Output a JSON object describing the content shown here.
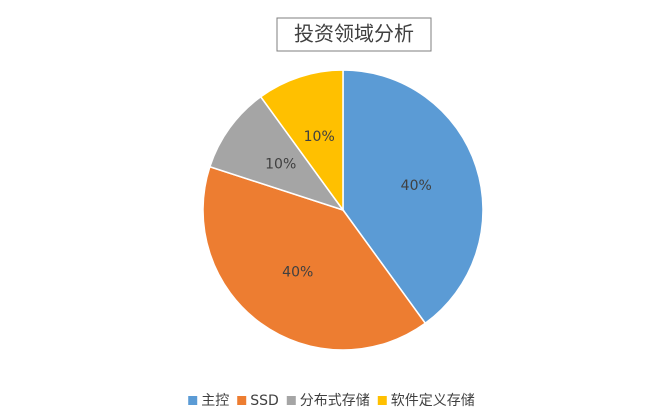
{
  "chart_data": {
    "type": "pie",
    "title": "投资领域分析",
    "categories": [
      "主控",
      "SSD",
      "分布式存储",
      "软件定义存储"
    ],
    "values": [
      40,
      40,
      10,
      10
    ],
    "value_labels": [
      "40%",
      "40%",
      "10%",
      "10%"
    ],
    "colors": [
      "#5b9bd5",
      "#ed7d31",
      "#a5a5a5",
      "#ffc000"
    ],
    "legend": "bottom"
  }
}
